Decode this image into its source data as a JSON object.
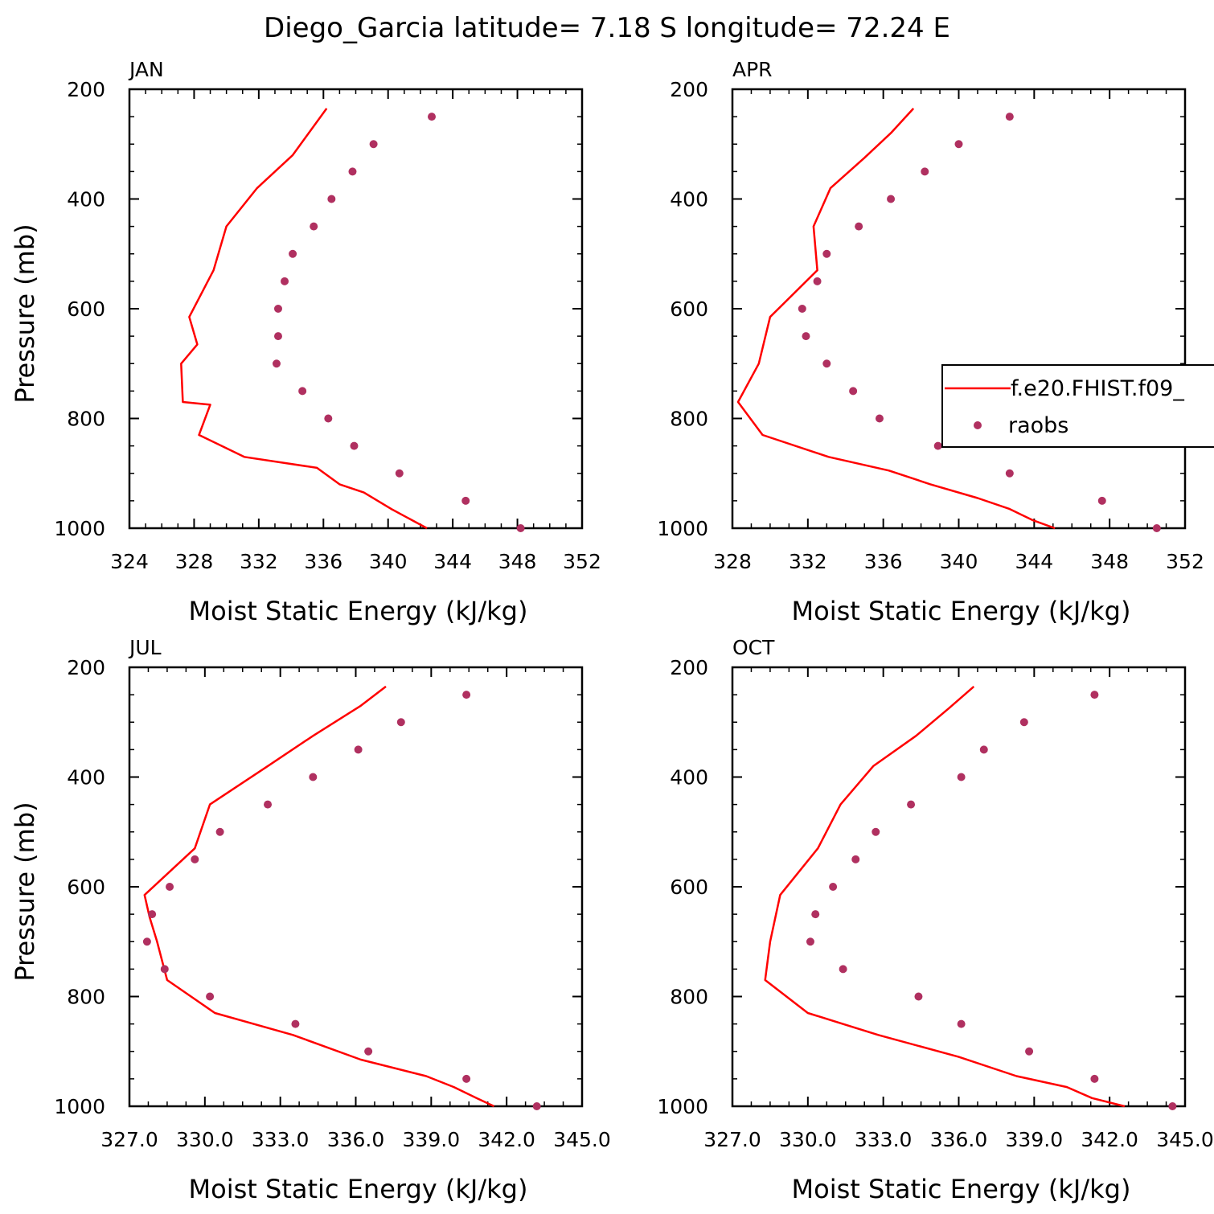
{
  "title": "Diego_Garcia  latitude= 7.18 S longitude= 72.24 E",
  "colors": {
    "model": "#ff0000",
    "obs": "#b03060",
    "axis": "#000000"
  },
  "legend": {
    "model_label": "f.e20.FHIST.f09_",
    "obs_label": "raobs",
    "placement": "right, inside APR panel (clipped at right edge)"
  },
  "chart_data": [
    {
      "type": "line",
      "panel_label": "JAN",
      "xlabel": "Moist Static Energy (kJ/kg)",
      "ylabel": "Pressure (mb)",
      "xlim": [
        324,
        352
      ],
      "ylim": [
        1000,
        200
      ],
      "xticks": [
        "324",
        "328",
        "332",
        "336",
        "340",
        "344",
        "348",
        "352"
      ],
      "yticks": [
        "200",
        "400",
        "600",
        "800",
        "1000"
      ],
      "series": [
        {
          "name": "f.e20.FHIST.f09_",
          "kind": "line",
          "x": [
            342.4,
            340.2,
            338.5,
            337.0,
            335.6,
            331.1,
            328.3,
            329.0,
            327.3,
            327.2,
            328.2,
            327.7,
            329.2,
            330.0,
            331.9,
            334.1,
            336.2
          ],
          "y": [
            1000,
            965,
            935,
            920,
            890,
            870,
            830,
            775,
            770,
            700,
            665,
            615,
            530,
            450,
            380,
            320,
            235
          ]
        },
        {
          "name": "raobs",
          "kind": "points",
          "x": [
            348.2,
            344.8,
            340.7,
            337.9,
            336.3,
            334.7,
            333.1,
            333.2,
            333.2,
            333.6,
            334.1,
            335.4,
            336.5,
            337.8,
            339.1,
            342.7
          ],
          "y": [
            1000,
            950,
            900,
            850,
            800,
            750,
            700,
            650,
            600,
            550,
            500,
            450,
            400,
            350,
            300,
            250
          ]
        }
      ]
    },
    {
      "type": "line",
      "panel_label": "APR",
      "xlabel": "Moist Static Energy (kJ/kg)",
      "ylabel": "",
      "xlim": [
        328,
        352
      ],
      "ylim": [
        1000,
        200
      ],
      "xticks": [
        "328",
        "332",
        "336",
        "340",
        "344",
        "348",
        "352"
      ],
      "yticks": [
        "200",
        "400",
        "600",
        "800",
        "1000"
      ],
      "series": [
        {
          "name": "f.e20.FHIST.f09_",
          "kind": "line",
          "x": [
            345.1,
            343.9,
            342.7,
            341.0,
            338.5,
            336.3,
            333.1,
            329.6,
            328.3,
            329.4,
            330.0,
            332.5,
            332.3,
            333.2,
            335.0,
            336.4,
            337.6
          ],
          "y": [
            1000,
            985,
            965,
            945,
            920,
            895,
            870,
            830,
            770,
            700,
            615,
            530,
            450,
            380,
            325,
            280,
            235
          ]
        },
        {
          "name": "raobs",
          "kind": "points",
          "x": [
            350.5,
            347.6,
            342.7,
            338.9,
            335.8,
            334.4,
            333.0,
            331.9,
            331.7,
            332.5,
            333.0,
            334.7,
            336.4,
            338.2,
            340.0,
            342.7
          ],
          "y": [
            1000,
            950,
            900,
            850,
            800,
            750,
            700,
            650,
            600,
            550,
            500,
            450,
            400,
            350,
            300,
            250
          ]
        }
      ]
    },
    {
      "type": "line",
      "panel_label": "JUL",
      "xlabel": "Moist Static Energy (kJ/kg)",
      "ylabel": "Pressure (mb)",
      "xlim": [
        327.0,
        345.0
      ],
      "ylim": [
        1000,
        200
      ],
      "xticks": [
        "327.0",
        "330.0",
        "333.0",
        "336.0",
        "339.0",
        "342.0",
        "345.0"
      ],
      "yticks": [
        "200",
        "400",
        "600",
        "800",
        "1000"
      ],
      "series": [
        {
          "name": "f.e20.FHIST.f09_",
          "kind": "line",
          "x": [
            341.5,
            340.8,
            339.9,
            338.8,
            336.2,
            333.5,
            330.4,
            328.5,
            328.1,
            327.8,
            327.6,
            329.6,
            330.2,
            332.5,
            334.3,
            336.2,
            337.2
          ],
          "y": [
            1000,
            985,
            965,
            945,
            915,
            870,
            830,
            770,
            700,
            655,
            615,
            530,
            450,
            380,
            325,
            270,
            235
          ]
        },
        {
          "name": "raobs",
          "kind": "points",
          "x": [
            343.2,
            340.4,
            336.5,
            333.6,
            330.2,
            328.4,
            327.7,
            327.9,
            328.6,
            329.6,
            330.6,
            332.5,
            334.3,
            336.1,
            337.8,
            340.4
          ],
          "y": [
            1000,
            950,
            900,
            850,
            800,
            750,
            700,
            650,
            600,
            550,
            500,
            450,
            400,
            350,
            300,
            250
          ]
        }
      ]
    },
    {
      "type": "line",
      "panel_label": "OCT",
      "xlabel": "Moist Static Energy (kJ/kg)",
      "ylabel": "",
      "xlim": [
        327.0,
        345.0
      ],
      "ylim": [
        1000,
        200
      ],
      "xticks": [
        "327.0",
        "330.0",
        "333.0",
        "336.0",
        "339.0",
        "342.0",
        "345.0"
      ],
      "yticks": [
        "200",
        "400",
        "600",
        "800",
        "1000"
      ],
      "series": [
        {
          "name": "f.e20.FHIST.f09_",
          "kind": "line",
          "x": [
            342.6,
            341.3,
            340.3,
            338.3,
            336.0,
            332.8,
            330.0,
            328.3,
            328.5,
            328.9,
            330.4,
            331.3,
            332.6,
            334.3,
            335.6,
            336.6
          ],
          "y": [
            1000,
            985,
            965,
            945,
            910,
            870,
            830,
            770,
            700,
            615,
            530,
            450,
            380,
            325,
            275,
            235
          ]
        },
        {
          "name": "raobs",
          "kind": "points",
          "x": [
            344.5,
            341.4,
            338.8,
            336.1,
            334.4,
            331.4,
            330.1,
            330.3,
            331.0,
            331.9,
            332.7,
            334.1,
            336.1,
            337.0,
            338.6,
            341.4
          ],
          "y": [
            1000,
            950,
            900,
            850,
            800,
            750,
            700,
            650,
            600,
            550,
            500,
            450,
            400,
            350,
            300,
            250
          ]
        }
      ]
    }
  ]
}
